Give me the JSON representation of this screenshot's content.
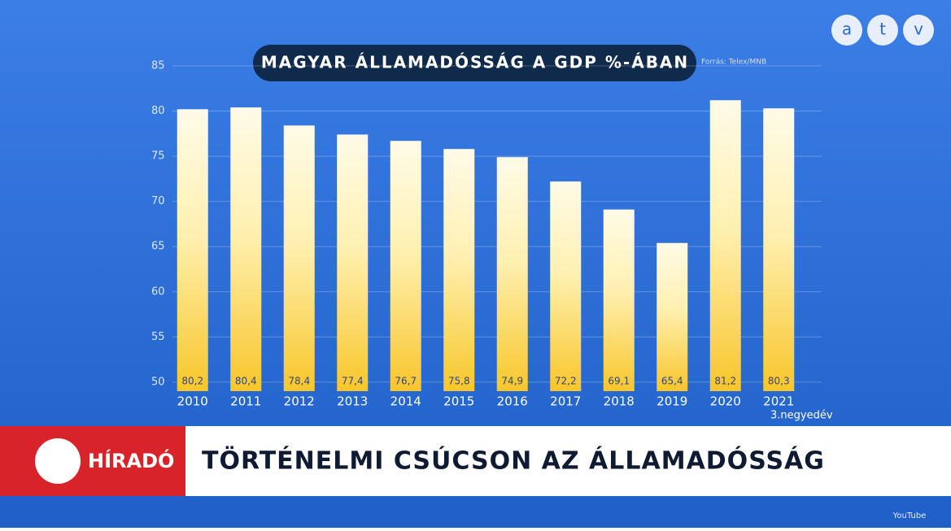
{
  "chart_data": {
    "type": "bar",
    "title": "MAGYAR ÁLLAMADÓSSÁG A GDP %-ÁBAN",
    "source": "Forrás: Telex/MNB",
    "categories": [
      "2010",
      "2011",
      "2012",
      "2013",
      "2014",
      "2015",
      "2016",
      "2017",
      "2018",
      "2019",
      "2020",
      "2021"
    ],
    "category_note": "3.negyedév",
    "values": [
      80.2,
      80.4,
      78.4,
      77.4,
      76.7,
      75.8,
      74.9,
      72.2,
      69.1,
      65.4,
      81.2,
      80.3
    ],
    "value_labels": [
      "80,2",
      "80,4",
      "78,4",
      "77,4",
      "76,7",
      "75,8",
      "74,9",
      "72,2",
      "69,1",
      "65,4",
      "81,2",
      "80,3"
    ],
    "color": "#f8c62a",
    "ylim": [
      49,
      85
    ],
    "yticks": [
      50,
      55,
      60,
      65,
      70,
      75,
      80,
      85
    ],
    "grid": true
  },
  "logo": [
    "a",
    "t",
    "v"
  ],
  "banner": {
    "label": "HÍRADÓ",
    "headline": "TÖRTÉNELMI CSÚCSON AZ ÁLLAMADÓSSÁG"
  },
  "watermark": "YouTube"
}
